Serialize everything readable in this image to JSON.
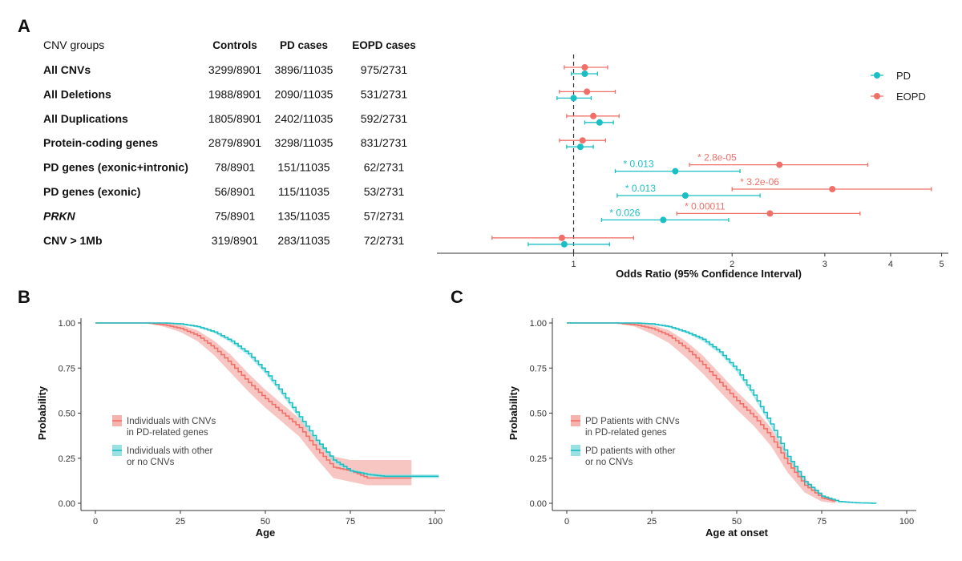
{
  "panel_labels": {
    "a": "A",
    "b": "B",
    "c": "C"
  },
  "colors": {
    "pd": "#19bfc4",
    "eopd": "#f07068",
    "pd_band": "#9ae1e2",
    "eopd_band": "#f6b3ae"
  },
  "table": {
    "headers": [
      "CNV groups",
      "Controls",
      "PD cases",
      "EOPD cases"
    ],
    "rows": [
      {
        "group": "All CNVs",
        "controls": "3299/8901",
        "pd": "3896/11035",
        "eopd": "975/2731"
      },
      {
        "group": "All Deletions",
        "controls": "1988/8901",
        "pd": "2090/11035",
        "eopd": "531/2731"
      },
      {
        "group": "All Duplications",
        "controls": "1805/8901",
        "pd": "2402/11035",
        "eopd": "592/2731"
      },
      {
        "group": "Protein-coding genes",
        "controls": "2879/8901",
        "pd": "3298/11035",
        "eopd": "831/2731"
      },
      {
        "group": "PD genes (exonic+intronic)",
        "controls": "78/8901",
        "pd": "151/11035",
        "eopd": "62/2731"
      },
      {
        "group": "PD genes (exonic)",
        "controls": "56/8901",
        "pd": "115/11035",
        "eopd": "53/2731"
      },
      {
        "group": "PRKN",
        "controls": "75/8901",
        "pd": "135/11035",
        "eopd": "57/2731"
      },
      {
        "group": "CNV > 1Mb",
        "controls": "319/8901",
        "pd": "283/11035",
        "eopd": "72/2731"
      }
    ]
  },
  "chart_data": [
    {
      "type": "scatter",
      "subtype": "forest",
      "xlabel": "Odds Ratio (95% Confidence Interval)",
      "x_scale": "log",
      "xlim": [
        0.55,
        5.15
      ],
      "x_ticks": [
        1,
        2,
        3,
        4,
        5
      ],
      "reference_line": 1,
      "legend": [
        "PD",
        "EOPD"
      ],
      "legend_position": "top-right",
      "series": [
        {
          "name": "PD",
          "rows": [
            {
              "or": 1.05,
              "lo": 0.99,
              "hi": 1.11,
              "label": ""
            },
            {
              "or": 1.0,
              "lo": 0.93,
              "hi": 1.08,
              "label": ""
            },
            {
              "or": 1.12,
              "lo": 1.05,
              "hi": 1.19,
              "label": ""
            },
            {
              "or": 1.03,
              "lo": 0.97,
              "hi": 1.09,
              "label": ""
            },
            {
              "or": 1.56,
              "lo": 1.2,
              "hi": 2.07,
              "label": "* 0.013"
            },
            {
              "or": 1.63,
              "lo": 1.21,
              "hi": 2.26,
              "label": "* 0.013"
            },
            {
              "or": 1.48,
              "lo": 1.13,
              "hi": 1.97,
              "label": "* 0.026"
            },
            {
              "or": 0.96,
              "lo": 0.82,
              "hi": 1.17,
              "label": ""
            }
          ]
        },
        {
          "name": "EOPD",
          "rows": [
            {
              "or": 1.05,
              "lo": 0.96,
              "hi": 1.16,
              "label": ""
            },
            {
              "or": 1.06,
              "lo": 0.94,
              "hi": 1.2,
              "label": ""
            },
            {
              "or": 1.09,
              "lo": 0.97,
              "hi": 1.22,
              "label": ""
            },
            {
              "or": 1.04,
              "lo": 0.94,
              "hi": 1.15,
              "label": ""
            },
            {
              "or": 2.46,
              "lo": 1.66,
              "hi": 3.62,
              "label": "* 2.8e-05"
            },
            {
              "or": 3.1,
              "lo": 2.0,
              "hi": 4.78,
              "label": "* 3.2e-06"
            },
            {
              "or": 2.36,
              "lo": 1.57,
              "hi": 3.5,
              "label": "* 0.00011"
            },
            {
              "or": 0.95,
              "lo": 0.7,
              "hi": 1.3,
              "label": ""
            }
          ]
        }
      ]
    },
    {
      "type": "line",
      "subtype": "kaplan-meier",
      "xlabel": "Age",
      "ylabel": "Probability",
      "xlim": [
        0,
        100
      ],
      "ylim": [
        0,
        1
      ],
      "x_ticks": [
        0,
        25,
        50,
        75,
        100
      ],
      "y_ticks": [
        0,
        0.25,
        0.5,
        0.75,
        1
      ],
      "legend_position": "center-left",
      "series": [
        {
          "name": "Individuals with CNVs\nin PD-related genes",
          "color": "eopd",
          "x": [
            0,
            15,
            20,
            25,
            30,
            35,
            40,
            45,
            50,
            55,
            60,
            65,
            70,
            75,
            80,
            93
          ],
          "y": [
            1,
            1,
            0.99,
            0.97,
            0.93,
            0.86,
            0.77,
            0.67,
            0.58,
            0.5,
            0.42,
            0.3,
            0.2,
            0.18,
            0.14,
            0.14
          ],
          "band_lo": [
            1,
            1,
            0.98,
            0.95,
            0.9,
            0.82,
            0.72,
            0.62,
            0.53,
            0.45,
            0.37,
            0.25,
            0.14,
            0.12,
            0.1,
            0.1
          ],
          "band_hi": [
            1,
            1,
            1,
            0.99,
            0.96,
            0.9,
            0.82,
            0.72,
            0.63,
            0.55,
            0.47,
            0.35,
            0.26,
            0.24,
            0.24,
            0.24
          ]
        },
        {
          "name": "Individuals with other\nor no CNVs",
          "color": "pd",
          "x": [
            0,
            15,
            20,
            25,
            30,
            35,
            40,
            45,
            50,
            55,
            60,
            65,
            70,
            75,
            80,
            85,
            90,
            95,
            101
          ],
          "y": [
            1,
            1,
            1,
            0.995,
            0.98,
            0.95,
            0.9,
            0.83,
            0.73,
            0.61,
            0.48,
            0.35,
            0.24,
            0.18,
            0.16,
            0.15,
            0.15,
            0.15,
            0.15
          ],
          "band_lo": [
            1,
            1,
            1,
            0.99,
            0.975,
            0.945,
            0.89,
            0.82,
            0.72,
            0.6,
            0.47,
            0.34,
            0.23,
            0.17,
            0.15,
            0.14,
            0.14,
            0.14,
            0.14
          ],
          "band_hi": [
            1,
            1,
            1,
            1,
            0.985,
            0.955,
            0.91,
            0.84,
            0.74,
            0.62,
            0.49,
            0.36,
            0.25,
            0.19,
            0.17,
            0.16,
            0.16,
            0.16,
            0.16
          ]
        }
      ]
    },
    {
      "type": "line",
      "subtype": "kaplan-meier",
      "xlabel": "Age at onset",
      "ylabel": "Probability",
      "xlim": [
        0,
        100
      ],
      "ylim": [
        0,
        1
      ],
      "x_ticks": [
        0,
        25,
        50,
        75,
        100
      ],
      "y_ticks": [
        0,
        0.25,
        0.5,
        0.75,
        1
      ],
      "legend_position": "center-left",
      "series": [
        {
          "name": "PD Patients with CNVs\nin PD-related genes",
          "color": "eopd",
          "x": [
            0,
            14,
            20,
            25,
            30,
            35,
            40,
            45,
            50,
            55,
            60,
            65,
            70,
            75,
            79
          ],
          "y": [
            1,
            1,
            0.99,
            0.97,
            0.93,
            0.86,
            0.77,
            0.67,
            0.57,
            0.48,
            0.37,
            0.22,
            0.1,
            0.03,
            0.01
          ],
          "band_lo": [
            1,
            1,
            0.98,
            0.94,
            0.89,
            0.81,
            0.72,
            0.62,
            0.52,
            0.43,
            0.32,
            0.17,
            0.06,
            0.01,
            0
          ],
          "band_hi": [
            1,
            1,
            1,
            0.99,
            0.96,
            0.9,
            0.82,
            0.72,
            0.62,
            0.53,
            0.42,
            0.27,
            0.14,
            0.05,
            0.02
          ]
        },
        {
          "name": "PD patients with other\nor no CNVs",
          "color": "pd",
          "x": [
            0,
            14,
            20,
            25,
            30,
            35,
            40,
            45,
            50,
            55,
            60,
            65,
            70,
            75,
            80,
            85,
            91
          ],
          "y": [
            1,
            1,
            1,
            0.995,
            0.98,
            0.95,
            0.91,
            0.84,
            0.74,
            0.6,
            0.44,
            0.26,
            0.12,
            0.04,
            0.01,
            0.003,
            0
          ],
          "band_lo": [
            1,
            1,
            1,
            0.99,
            0.975,
            0.945,
            0.9,
            0.83,
            0.73,
            0.59,
            0.43,
            0.25,
            0.11,
            0.035,
            0.008,
            0.002,
            0
          ],
          "band_hi": [
            1,
            1,
            1,
            1,
            0.985,
            0.955,
            0.92,
            0.85,
            0.75,
            0.61,
            0.45,
            0.27,
            0.13,
            0.045,
            0.012,
            0.004,
            0
          ]
        }
      ]
    }
  ]
}
